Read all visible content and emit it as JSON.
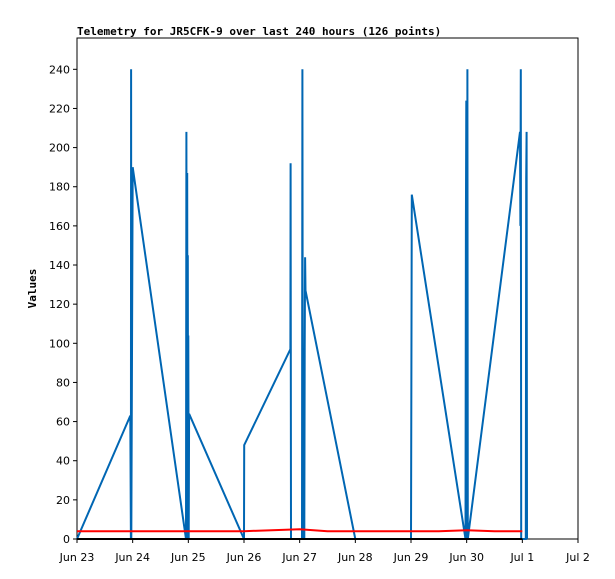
{
  "chart_data": {
    "type": "line",
    "title": "Telemetry for JR5CFK-9 over last 240 hours (126 points)",
    "xlabel": "",
    "ylabel": "Values",
    "xlim": [
      "2023-06-23T00:00",
      "2023-07-02T00:00"
    ],
    "ylim": [
      0,
      256
    ],
    "x_ticks": [
      "Jun 23",
      "Jun 24",
      "Jun 25",
      "Jun 26",
      "Jun 27",
      "Jun 28",
      "Jun 29",
      "Jun 30",
      "Jul 1",
      "Jul 2"
    ],
    "y_ticks": [
      0,
      20,
      40,
      60,
      80,
      100,
      120,
      140,
      160,
      180,
      200,
      220,
      240
    ],
    "grid": false,
    "legend": "none",
    "series": [
      {
        "color": "#0066b3",
        "points": [
          [
            "2023-06-23T00:00",
            0
          ],
          [
            "2023-06-23T23:00",
            63
          ],
          [
            "2023-06-23T23:15",
            0
          ],
          [
            "2023-06-23T23:20",
            240
          ],
          [
            "2023-06-23T23:25",
            0
          ],
          [
            "2023-06-24T00:00",
            190
          ],
          [
            "2023-06-24T23:00",
            0
          ],
          [
            "2023-06-24T23:10",
            208
          ],
          [
            "2023-06-24T23:20",
            0
          ],
          [
            "2023-06-24T23:30",
            187
          ],
          [
            "2023-06-24T23:40",
            0
          ],
          [
            "2023-06-24T23:45",
            145
          ],
          [
            "2023-06-24T23:55",
            0
          ],
          [
            "2023-06-25T00:00",
            104
          ],
          [
            "2023-06-25T00:10",
            0
          ],
          [
            "2023-06-25T00:20",
            64
          ],
          [
            "2023-06-26T00:00",
            0
          ],
          [
            "2023-06-26T00:05",
            48
          ],
          [
            "2023-06-26T20:00",
            97
          ],
          [
            "2023-06-26T20:05",
            192
          ],
          [
            "2023-06-26T20:15",
            0
          ],
          [
            "2023-06-27T01:00",
            0
          ],
          [
            "2023-06-27T01:10",
            240
          ],
          [
            "2023-06-27T01:20",
            43
          ],
          [
            "2023-06-27T01:40",
            0
          ],
          [
            "2023-06-27T02:00",
            0
          ],
          [
            "2023-06-27T02:10",
            97
          ],
          [
            "2023-06-27T02:20",
            144
          ],
          [
            "2023-06-27T02:30",
            127
          ],
          [
            "2023-06-28T00:00",
            0
          ],
          [
            "2023-06-29T00:00",
            0
          ],
          [
            "2023-06-29T00:10",
            88
          ],
          [
            "2023-06-29T00:20",
            176
          ],
          [
            "2023-06-29T23:30",
            0
          ],
          [
            "2023-06-29T23:40",
            160
          ],
          [
            "2023-06-29T23:50",
            224
          ],
          [
            "2023-06-30T00:00",
            146
          ],
          [
            "2023-06-30T00:10",
            0
          ],
          [
            "2023-06-30T00:20",
            240
          ],
          [
            "2023-06-30T00:30",
            0
          ],
          [
            "2023-06-30T23:00",
            208
          ],
          [
            "2023-06-30T23:10",
            160
          ],
          [
            "2023-06-30T23:20",
            240
          ],
          [
            "2023-06-30T23:30",
            0
          ],
          [
            "2023-07-01T01:30",
            0
          ],
          [
            "2023-07-01T01:40",
            184
          ],
          [
            "2023-07-01T01:50",
            208
          ],
          [
            "2023-07-01T02:00",
            0
          ]
        ]
      },
      {
        "color": "#ff0000",
        "points": [
          [
            "2023-06-23T00:00",
            4
          ],
          [
            "2023-06-26T00:00",
            4
          ],
          [
            "2023-06-26T12:00",
            4.5
          ],
          [
            "2023-06-27T00:00",
            5
          ],
          [
            "2023-06-27T12:00",
            4
          ],
          [
            "2023-06-29T12:00",
            4
          ],
          [
            "2023-06-30T00:00",
            4.5
          ],
          [
            "2023-06-30T12:00",
            4
          ],
          [
            "2023-07-01T00:00",
            4
          ]
        ]
      },
      {
        "color": "#000000",
        "points": [
          [
            "2023-06-23T00:00",
            0
          ],
          [
            "2023-07-01T00:00",
            0
          ]
        ]
      }
    ]
  }
}
